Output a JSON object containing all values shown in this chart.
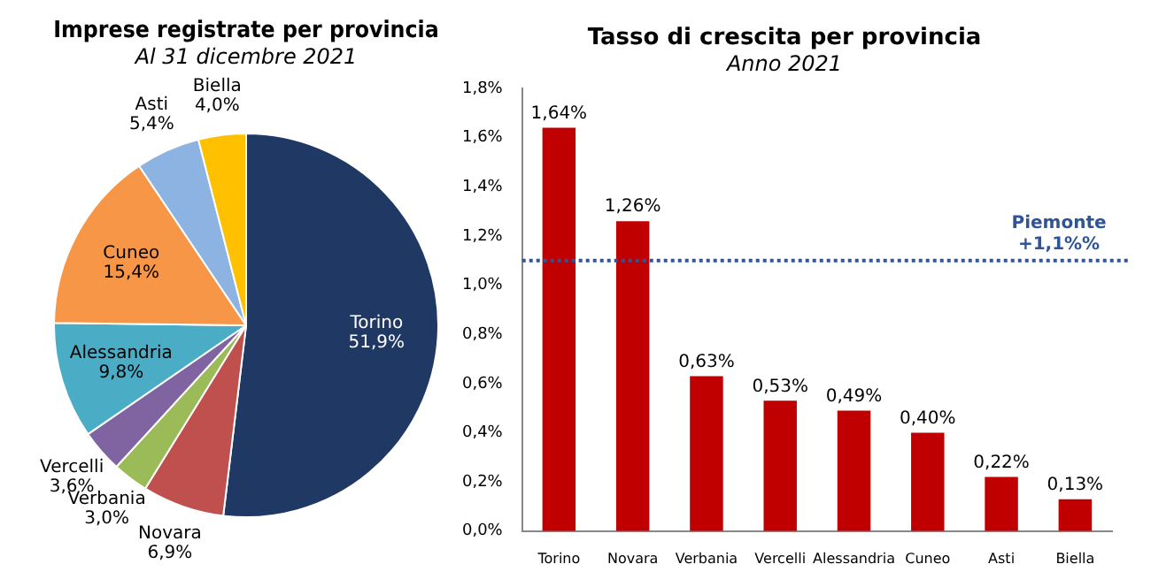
{
  "chart_data": [
    {
      "type": "pie",
      "title": "Imprese registrate per provincia",
      "subtitle": "Al 31 dicembre 2021",
      "categories": [
        "Torino",
        "Novara",
        "Verbania",
        "Vercelli",
        "Alessandria",
        "Cuneo",
        "Asti",
        "Biella"
      ],
      "values": [
        51.9,
        6.9,
        3.0,
        3.6,
        9.8,
        15.4,
        5.4,
        4.0
      ],
      "value_labels": [
        "51,9%",
        "6,9%",
        "3,0%",
        "3,6%",
        "9,8%",
        "15,4%",
        "5,4%",
        "4,0%"
      ],
      "colors": [
        "#1f3864",
        "#c0504d",
        "#9bbb59",
        "#8064a2",
        "#4bacc6",
        "#f79646",
        "#8db3e2",
        "#ffc000"
      ]
    },
    {
      "type": "bar",
      "title": "Tasso di crescita per provincia",
      "subtitle": "Anno 2021",
      "categories": [
        "Torino",
        "Novara",
        "Verbania",
        "Vercelli",
        "Alessandria",
        "Cuneo",
        "Asti",
        "Biella"
      ],
      "values": [
        1.64,
        1.26,
        0.63,
        0.53,
        0.49,
        0.4,
        0.22,
        0.13
      ],
      "value_labels": [
        "1,64%",
        "1,26%",
        "0,63%",
        "0,53%",
        "0,49%",
        "0,40%",
        "0,22%",
        "0,13%"
      ],
      "color": "#c00000",
      "ylim": [
        0,
        1.8
      ],
      "yticks": [
        {
          "value": 0,
          "label": "0,0%"
        },
        {
          "value": 0.2,
          "label": "0,2%"
        },
        {
          "value": 0.4,
          "label": "0,4%"
        },
        {
          "value": 0.6,
          "label": "0,6%"
        },
        {
          "value": 0.8,
          "label": "0,8%"
        },
        {
          "value": 1.0,
          "label": "1,0%"
        },
        {
          "value": 1.2,
          "label": "1,2%"
        },
        {
          "value": 1.4,
          "label": "1,4%"
        },
        {
          "value": 1.6,
          "label": "1,6%"
        },
        {
          "value": 1.8,
          "label": "1,8%"
        }
      ],
      "ref_lines": [
        {
          "axis": "y",
          "value": 1.1,
          "label": "Piemonte\n+1,1%%",
          "color": "#2f5597",
          "line_style": "dotted"
        }
      ]
    }
  ]
}
